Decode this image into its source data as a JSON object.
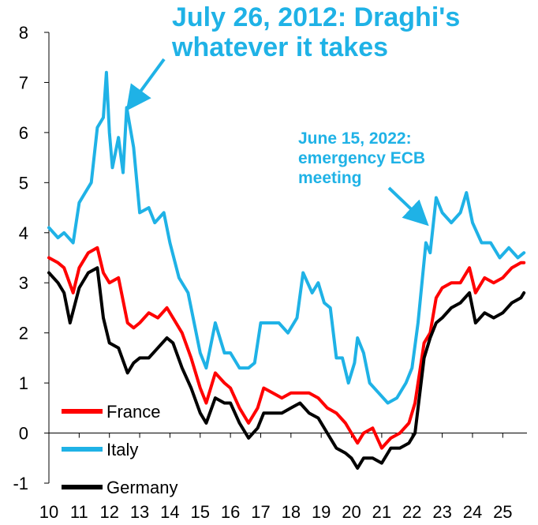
{
  "chart_data": {
    "type": "line",
    "title": "",
    "xlabel": "",
    "ylabel": "",
    "xlim": [
      2010,
      2025.8
    ],
    "ylim": [
      -1,
      8
    ],
    "x_ticks": [
      "10",
      "11",
      "12",
      "13",
      "14",
      "15",
      "16",
      "17",
      "18",
      "19",
      "20",
      "21",
      "22",
      "23",
      "24",
      "25"
    ],
    "y_ticks": [
      "-1",
      "0",
      "1",
      "2",
      "3",
      "4",
      "5",
      "6",
      "7",
      "8"
    ],
    "legend": [
      "France",
      "Italy",
      "Germany"
    ],
    "annotations": [
      {
        "text_lines": [
          "July 26, 2012: Draghi's",
          "whatever it takes"
        ],
        "x": 2012.57,
        "y": 6.5,
        "color": "#1FB2E6"
      },
      {
        "text_lines": [
          "June 15, 2022:",
          "emergency ECB",
          "meeting"
        ],
        "x": 2022.46,
        "y": 4.0,
        "color": "#1FB2E6"
      }
    ],
    "series": [
      {
        "name": "Italy",
        "color": "#1FB2E6",
        "x": [
          2010.0,
          2010.3,
          2010.5,
          2010.8,
          2011.0,
          2011.2,
          2011.4,
          2011.6,
          2011.8,
          2011.9,
          2012.0,
          2012.1,
          2012.3,
          2012.45,
          2012.57,
          2012.8,
          2013.0,
          2013.3,
          2013.5,
          2013.8,
          2014.0,
          2014.3,
          2014.6,
          2015.0,
          2015.2,
          2015.5,
          2015.8,
          2016.0,
          2016.3,
          2016.6,
          2016.8,
          2017.0,
          2017.3,
          2017.6,
          2017.9,
          2018.2,
          2018.4,
          2018.7,
          2018.9,
          2019.1,
          2019.3,
          2019.5,
          2019.7,
          2019.9,
          2020.1,
          2020.2,
          2020.4,
          2020.6,
          2020.9,
          2021.2,
          2021.5,
          2021.8,
          2022.0,
          2022.2,
          2022.46,
          2022.6,
          2022.8,
          2023.0,
          2023.3,
          2023.6,
          2023.8,
          2024.0,
          2024.3,
          2024.6,
          2024.9,
          2025.2,
          2025.5,
          2025.7
        ],
        "values": [
          4.1,
          3.9,
          4.0,
          3.8,
          4.6,
          4.8,
          5.0,
          6.1,
          6.3,
          7.2,
          6.0,
          5.3,
          5.9,
          5.2,
          6.5,
          5.7,
          4.4,
          4.5,
          4.2,
          4.4,
          3.8,
          3.1,
          2.8,
          1.6,
          1.3,
          2.2,
          1.6,
          1.6,
          1.3,
          1.3,
          1.4,
          2.2,
          2.2,
          2.2,
          2.0,
          2.3,
          3.2,
          2.8,
          3.0,
          2.6,
          2.5,
          1.5,
          1.5,
          1.0,
          1.4,
          1.9,
          1.6,
          1.0,
          0.8,
          0.6,
          0.7,
          1.0,
          1.3,
          2.2,
          3.8,
          3.6,
          4.7,
          4.4,
          4.2,
          4.4,
          4.8,
          4.2,
          3.8,
          3.8,
          3.5,
          3.7,
          3.5,
          3.6
        ]
      },
      {
        "name": "France",
        "color": "#FF0000",
        "x": [
          2010.0,
          2010.3,
          2010.5,
          2010.8,
          2011.0,
          2011.3,
          2011.6,
          2011.8,
          2012.0,
          2012.3,
          2012.6,
          2012.8,
          2013.0,
          2013.3,
          2013.6,
          2013.9,
          2014.1,
          2014.4,
          2014.7,
          2015.0,
          2015.2,
          2015.5,
          2015.8,
          2016.0,
          2016.3,
          2016.6,
          2016.9,
          2017.1,
          2017.4,
          2017.7,
          2018.0,
          2018.3,
          2018.6,
          2018.9,
          2019.2,
          2019.5,
          2019.8,
          2020.0,
          2020.2,
          2020.4,
          2020.7,
          2021.0,
          2021.3,
          2021.6,
          2021.9,
          2022.1,
          2022.4,
          2022.6,
          2022.8,
          2023.0,
          2023.3,
          2023.6,
          2023.9,
          2024.1,
          2024.4,
          2024.7,
          2025.0,
          2025.3,
          2025.6,
          2025.7
        ],
        "values": [
          3.5,
          3.4,
          3.3,
          2.8,
          3.3,
          3.6,
          3.7,
          3.2,
          3.0,
          3.1,
          2.2,
          2.1,
          2.2,
          2.4,
          2.3,
          2.5,
          2.3,
          2.0,
          1.5,
          0.9,
          0.6,
          1.2,
          1.0,
          0.9,
          0.5,
          0.2,
          0.5,
          0.9,
          0.8,
          0.7,
          0.8,
          0.8,
          0.8,
          0.7,
          0.5,
          0.4,
          0.2,
          0.0,
          -0.2,
          0.0,
          0.1,
          -0.3,
          -0.1,
          0.0,
          0.2,
          0.6,
          1.8,
          2.0,
          2.7,
          2.9,
          3.0,
          3.0,
          3.3,
          2.8,
          3.1,
          3.0,
          3.1,
          3.3,
          3.4,
          3.4
        ]
      },
      {
        "name": "Germany",
        "color": "#000000",
        "x": [
          2010.0,
          2010.3,
          2010.5,
          2010.7,
          2011.0,
          2011.3,
          2011.6,
          2011.8,
          2012.0,
          2012.3,
          2012.6,
          2012.8,
          2013.0,
          2013.3,
          2013.6,
          2013.9,
          2014.1,
          2014.4,
          2014.7,
          2015.0,
          2015.2,
          2015.5,
          2015.8,
          2016.0,
          2016.3,
          2016.6,
          2016.9,
          2017.1,
          2017.4,
          2017.7,
          2018.0,
          2018.3,
          2018.6,
          2018.9,
          2019.2,
          2019.5,
          2019.8,
          2020.0,
          2020.2,
          2020.4,
          2020.7,
          2021.0,
          2021.3,
          2021.6,
          2021.9,
          2022.1,
          2022.4,
          2022.6,
          2022.8,
          2023.0,
          2023.3,
          2023.6,
          2023.9,
          2024.1,
          2024.4,
          2024.7,
          2025.0,
          2025.3,
          2025.6,
          2025.7
        ],
        "values": [
          3.2,
          3.0,
          2.8,
          2.2,
          2.9,
          3.2,
          3.3,
          2.3,
          1.8,
          1.7,
          1.2,
          1.4,
          1.5,
          1.5,
          1.7,
          1.9,
          1.8,
          1.3,
          0.9,
          0.4,
          0.2,
          0.7,
          0.6,
          0.6,
          0.2,
          -0.1,
          0.1,
          0.4,
          0.4,
          0.4,
          0.5,
          0.6,
          0.4,
          0.3,
          0.0,
          -0.3,
          -0.4,
          -0.5,
          -0.7,
          -0.5,
          -0.5,
          -0.6,
          -0.3,
          -0.3,
          -0.2,
          0.0,
          1.5,
          1.9,
          2.2,
          2.3,
          2.5,
          2.6,
          2.8,
          2.2,
          2.4,
          2.3,
          2.4,
          2.6,
          2.7,
          2.8
        ]
      }
    ]
  }
}
